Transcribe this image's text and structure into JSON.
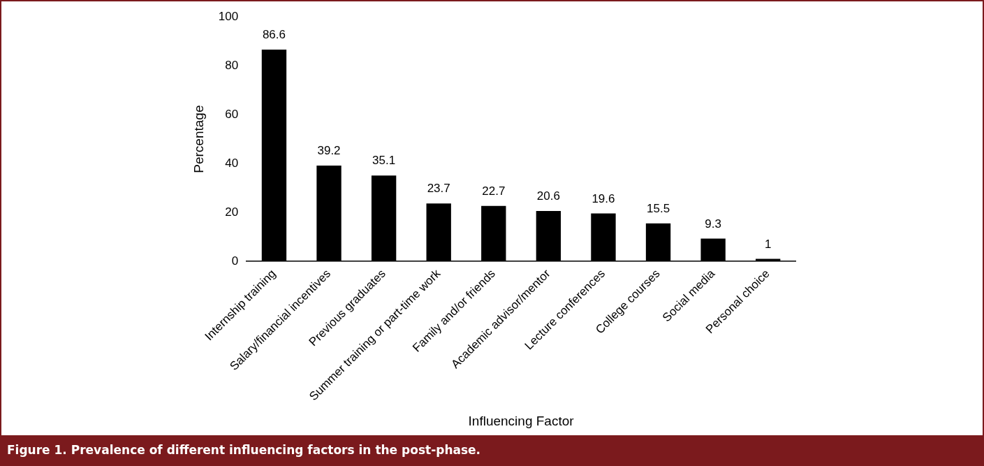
{
  "chart_data": {
    "type": "bar",
    "title": "Figure 1.  Prevalence of different influencing factors in the post-phase.",
    "xlabel": "Influencing Factor",
    "ylabel": "Percentage",
    "categories": [
      "Internship training",
      "Salary/financial incentives",
      "Previous graduates",
      "Summer training or part-time work",
      "Family and/or friends",
      "Academic advisor/mentor",
      "Lecture conferences",
      "College courses",
      "Social media",
      "Personal choice"
    ],
    "values": [
      86.6,
      39.2,
      35.1,
      23.7,
      22.7,
      20.6,
      19.6,
      15.5,
      9.3,
      1
    ],
    "color": "#000000",
    "ylim": [
      0,
      100
    ],
    "yticks": [
      0,
      20,
      40,
      60,
      80,
      100
    ],
    "grid": false,
    "data_labels": true
  }
}
